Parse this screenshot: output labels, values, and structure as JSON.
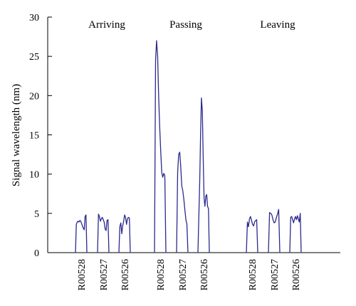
{
  "chart_data": {
    "type": "line",
    "title": "",
    "xlabel": "",
    "ylabel": "Signal wavelength (nm)",
    "ylim": [
      0,
      30
    ],
    "yticks": [
      0,
      5,
      10,
      15,
      20,
      25,
      30
    ],
    "grid": false,
    "line_color": "#2b2a8c",
    "groups": [
      {
        "name": "Arriving",
        "series": [
          {
            "label": "R00528",
            "values": [
              0,
              3.6,
              3.9,
              4.0,
              3.9,
              4.1,
              4.0,
              3.7,
              3.4,
              3.1,
              2.9,
              4.6,
              4.8,
              0
            ]
          },
          {
            "label": "R00527",
            "values": [
              0,
              4.9,
              4.6,
              4.0,
              4.3,
              4.5,
              4.2,
              3.9,
              3.0,
              2.8,
              4.1,
              4.2,
              0
            ]
          },
          {
            "label": "R00526",
            "values": [
              0,
              3.3,
              3.8,
              2.4,
              3.4,
              4.0,
              4.8,
              4.5,
              3.6,
              4.3,
              4.5,
              4.4,
              0
            ]
          }
        ]
      },
      {
        "name": "Passing",
        "series": [
          {
            "label": "R00528",
            "values": [
              0,
              24.5,
              27.0,
              25.0,
              20.0,
              16.0,
              13.0,
              10.2,
              9.6,
              10.1,
              9.8,
              0
            ]
          },
          {
            "label": "R00527",
            "values": [
              0,
              10.2,
              12.5,
              12.8,
              11.0,
              8.5,
              7.9,
              6.8,
              5.5,
              4.2,
              3.6,
              0
            ]
          },
          {
            "label": "R00526",
            "values": [
              0,
              4.4,
              9.0,
              15.0,
              19.7,
              18.0,
              12.0,
              7.0,
              5.9,
              7.2,
              7.4,
              5.9,
              5.6,
              0
            ]
          }
        ]
      },
      {
        "name": "Leaving",
        "series": [
          {
            "label": "R00528",
            "values": [
              0,
              3.9,
              3.3,
              4.3,
              4.6,
              4.1,
              3.6,
              3.4,
              3.9,
              4.1,
              4.2,
              0
            ]
          },
          {
            "label": "R00527",
            "values": [
              0,
              5.1,
              5.0,
              4.8,
              4.2,
              3.8,
              3.9,
              4.5,
              4.9,
              5.5,
              0
            ]
          },
          {
            "label": "R00526",
            "values": [
              0,
              4.5,
              4.6,
              4.2,
              3.8,
              4.3,
              4.6,
              4.2,
              4.7,
              4.3,
              3.9,
              5.0,
              0
            ]
          }
        ]
      }
    ]
  }
}
